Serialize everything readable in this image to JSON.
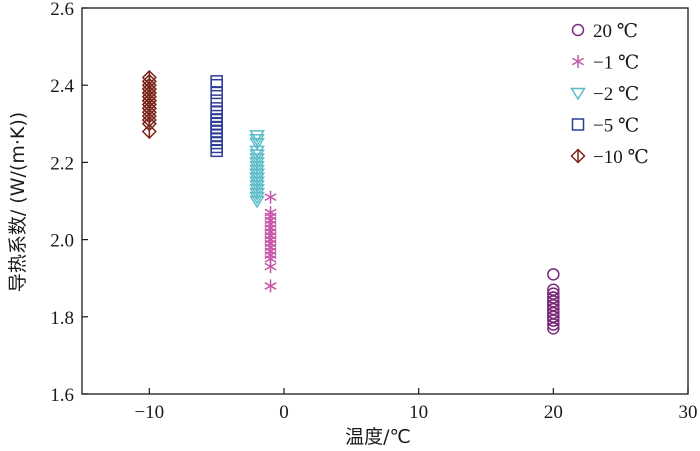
{
  "chart_data": {
    "type": "scatter",
    "title": "",
    "xlabel": "温度/℃",
    "ylabel": "导热系数/ (W/(m·K))",
    "xlim": [
      -15,
      30
    ],
    "ylim": [
      1.6,
      2.6
    ],
    "xticks": [
      -10,
      0,
      10,
      20,
      30
    ],
    "yticks": [
      1.6,
      1.8,
      2.0,
      2.2,
      2.4,
      2.6
    ],
    "xtick_labels": [
      "−10",
      "0",
      "10",
      "20",
      "30"
    ],
    "ytick_labels": [
      "1.6",
      "1.8",
      "2.0",
      "2.2",
      "2.4",
      "2.6"
    ],
    "grid": false,
    "legend_position": "top-right",
    "series": [
      {
        "name": "20 ℃",
        "marker": "circle",
        "color": "#7b2a7b",
        "x": [
          20,
          20,
          20,
          20,
          20,
          20,
          20,
          20,
          20,
          20,
          20,
          20,
          20,
          20,
          20,
          20,
          20,
          20
        ],
        "y": [
          1.77,
          1.78,
          1.79,
          1.8,
          1.8,
          1.81,
          1.81,
          1.82,
          1.82,
          1.83,
          1.83,
          1.84,
          1.84,
          1.85,
          1.85,
          1.86,
          1.87,
          1.91
        ]
      },
      {
        "name": "−1 ℃",
        "marker": "asterisk",
        "color": "#c655a8",
        "x": [
          -1,
          -1,
          -1,
          -1,
          -1,
          -1,
          -1,
          -1,
          -1,
          -1,
          -1,
          -1,
          -1,
          -1,
          -1,
          -1,
          -1,
          -1,
          -1,
          -1
        ],
        "y": [
          1.88,
          1.93,
          1.95,
          1.96,
          1.97,
          1.98,
          1.99,
          2.0,
          2.0,
          2.01,
          2.01,
          2.02,
          2.02,
          2.03,
          2.03,
          2.04,
          2.05,
          2.06,
          2.07,
          2.11
        ]
      },
      {
        "name": "−2 ℃",
        "marker": "triangle-down",
        "color": "#5bbcc8",
        "x": [
          -2,
          -2,
          -2,
          -2,
          -2,
          -2,
          -2,
          -2,
          -2,
          -2,
          -2,
          -2,
          -2,
          -2,
          -2,
          -2,
          -2,
          -2,
          -2,
          -2
        ],
        "y": [
          2.1,
          2.11,
          2.12,
          2.13,
          2.14,
          2.15,
          2.15,
          2.16,
          2.16,
          2.17,
          2.17,
          2.18,
          2.19,
          2.2,
          2.21,
          2.22,
          2.23,
          2.25,
          2.26,
          2.27
        ]
      },
      {
        "name": "−5 ℃",
        "marker": "square",
        "color": "#2e3f98",
        "x": [
          -5,
          -5,
          -5,
          -5,
          -5,
          -5,
          -5,
          -5,
          -5,
          -5,
          -5,
          -5,
          -5,
          -5,
          -5,
          -5,
          -5,
          -5,
          -5,
          -5
        ],
        "y": [
          2.23,
          2.24,
          2.25,
          2.26,
          2.27,
          2.28,
          2.28,
          2.29,
          2.29,
          2.3,
          2.3,
          2.31,
          2.31,
          2.32,
          2.33,
          2.34,
          2.36,
          2.38,
          2.4,
          2.41
        ]
      },
      {
        "name": "−10 ℃",
        "marker": "diamond",
        "color": "#7a2418",
        "x": [
          -10,
          -10,
          -10,
          -10,
          -10,
          -10,
          -10,
          -10,
          -10,
          -10,
          -10,
          -10,
          -10,
          -10,
          -10,
          -10,
          -10,
          -10,
          -10,
          -10
        ],
        "y": [
          2.28,
          2.3,
          2.31,
          2.32,
          2.33,
          2.34,
          2.34,
          2.35,
          2.35,
          2.36,
          2.36,
          2.37,
          2.37,
          2.38,
          2.38,
          2.39,
          2.39,
          2.4,
          2.41,
          2.42
        ]
      }
    ]
  }
}
